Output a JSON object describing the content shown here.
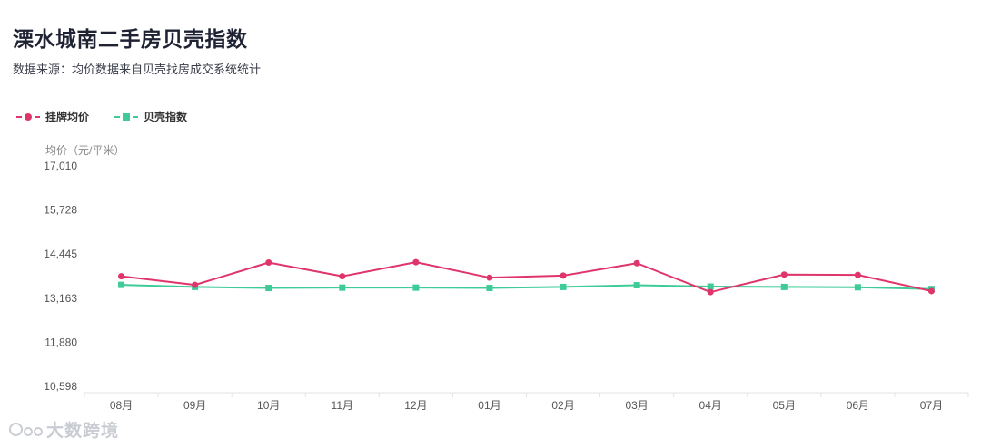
{
  "header": {
    "title": "溧水城南二手房贝壳指数",
    "subtitle": "数据来源：均价数据来自贝壳找房成交系统统计"
  },
  "watermark": {
    "text": "大数跨境",
    "icon": "ring-logo-icon"
  },
  "chart_data": {
    "type": "line",
    "ylabel": "均价（元/平米）",
    "ylim": [
      10598,
      17010
    ],
    "yticks": [
      "17,010",
      "15,728",
      "14,445",
      "13,163",
      "11,880",
      "10,598"
    ],
    "ytick_values": [
      17010,
      15728,
      14445,
      13163,
      11880,
      10598
    ],
    "categories": [
      "08月",
      "09月",
      "10月",
      "11月",
      "12月",
      "01月",
      "02月",
      "03月",
      "04月",
      "05月",
      "06月",
      "07月"
    ],
    "legend_position": "top-left",
    "grid": false,
    "series": [
      {
        "name": "挂牌均价",
        "color": "#e0356b",
        "marker": "circle",
        "values": [
          13800,
          13550,
          14200,
          13800,
          14210,
          13760,
          13820,
          14180,
          13340,
          13850,
          13840,
          13370
        ]
      },
      {
        "name": "贝壳指数",
        "color": "#3ecb97",
        "marker": "square",
        "values": [
          13550,
          13490,
          13460,
          13470,
          13470,
          13460,
          13490,
          13540,
          13500,
          13490,
          13480,
          13430
        ]
      }
    ]
  }
}
